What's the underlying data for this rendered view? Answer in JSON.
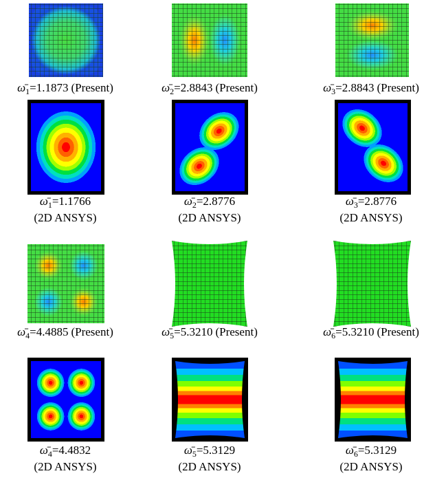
{
  "panels": [
    {
      "symbol": "ω̄",
      "subscript": "1",
      "value": "=1.1873",
      "method": "(Present)"
    },
    {
      "symbol": "ω̄",
      "subscript": "2",
      "value": "=2.8843",
      "method": "(Present)"
    },
    {
      "symbol": "ω̄",
      "subscript": "3",
      "value": "=2.8843",
      "method": "(Present)"
    },
    {
      "symbol": "ω̄",
      "subscript": "1",
      "value": "=1.1766",
      "method": "(2D ANSYS)"
    },
    {
      "symbol": "ω̄",
      "subscript": "2",
      "value": "=2.8776",
      "method": "(2D ANSYS)"
    },
    {
      "symbol": "ω̄",
      "subscript": "3",
      "value": "=2.8776",
      "method": "(2D ANSYS)"
    },
    {
      "symbol": "ω̄",
      "subscript": "4",
      "value": "=4.4885",
      "method": "(Present)"
    },
    {
      "symbol": "ω̄",
      "subscript": "5",
      "value": "=5.3210",
      "method": "(Present)"
    },
    {
      "symbol": "ω̄",
      "subscript": "6",
      "value": "=5.3210",
      "method": "(Present)"
    },
    {
      "symbol": "ω̄",
      "subscript": "4",
      "value": "=4.4832",
      "method": "(2D ANSYS)"
    },
    {
      "symbol": "ω̄",
      "subscript": "5",
      "value": "=5.3129",
      "method": "(2D ANSYS)"
    },
    {
      "symbol": "ω̄",
      "subscript": "6",
      "value": "=5.3129",
      "method": "(2D ANSYS)"
    }
  ]
}
